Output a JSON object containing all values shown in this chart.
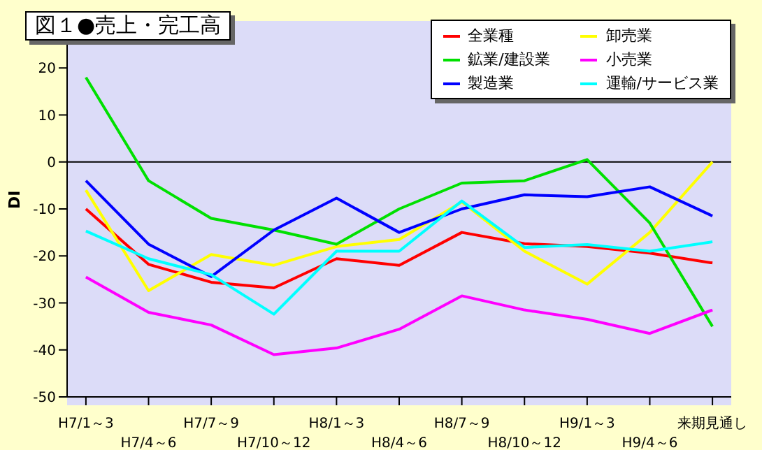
{
  "chart_data": {
    "type": "line",
    "title": "図１●売上・完工高",
    "ylabel": "DI",
    "categories": [
      "H7/1～3",
      "H7/4～6",
      "H7/7～9",
      "H7/10～12",
      "H8/1～3",
      "H8/4～6",
      "H8/7～9",
      "H8/10～12",
      "H9/1～3",
      "H9/4～6",
      "来期見通し"
    ],
    "series": [
      {
        "name": "全業種",
        "color": "#ff0000",
        "values": [
          -10,
          -21.8,
          -25.6,
          -26.8,
          -20.6,
          -22,
          -15,
          -17.4,
          -18,
          -19.4,
          -21.5
        ]
      },
      {
        "name": "卸売業",
        "color": "#ffff00",
        "values": [
          -6,
          -27.4,
          -19.7,
          -22,
          -18,
          -16.5,
          -8.5,
          -19,
          -26,
          -15,
          0
        ]
      },
      {
        "name": "鉱業/建設業",
        "color": "#00e000",
        "values": [
          18,
          -4,
          -12,
          -14.5,
          -17.5,
          -10,
          -4.5,
          -4,
          0.5,
          -13,
          -35
        ]
      },
      {
        "name": "小売業",
        "color": "#ff00ff",
        "values": [
          -24.5,
          -32,
          -34.7,
          -41,
          -39.6,
          -35.6,
          -28.5,
          -31.5,
          -33.5,
          -36.5,
          -31.5
        ]
      },
      {
        "name": "製造業",
        "color": "#0000ff",
        "values": [
          -4,
          -17.5,
          -24.4,
          -14.5,
          -7.7,
          -15,
          -10,
          -7,
          -7.4,
          -5.3,
          -11.5
        ]
      },
      {
        "name": "運輸/サービス業",
        "color": "#00ffff",
        "values": [
          -14.7,
          -20.6,
          -24,
          -32.4,
          -19,
          -19,
          -8.3,
          -18.2,
          -17.6,
          -19,
          -17
        ]
      }
    ],
    "ylim": [
      -50,
      30
    ],
    "yticks": [
      -50,
      -40,
      -30,
      -20,
      -10,
      0,
      10,
      20
    ],
    "ref_lines": [
      {
        "axis": "y",
        "value": 0,
        "color": "#000000"
      }
    ],
    "grid": false,
    "legend": "top right",
    "marker": "none",
    "line_style": "solid"
  }
}
